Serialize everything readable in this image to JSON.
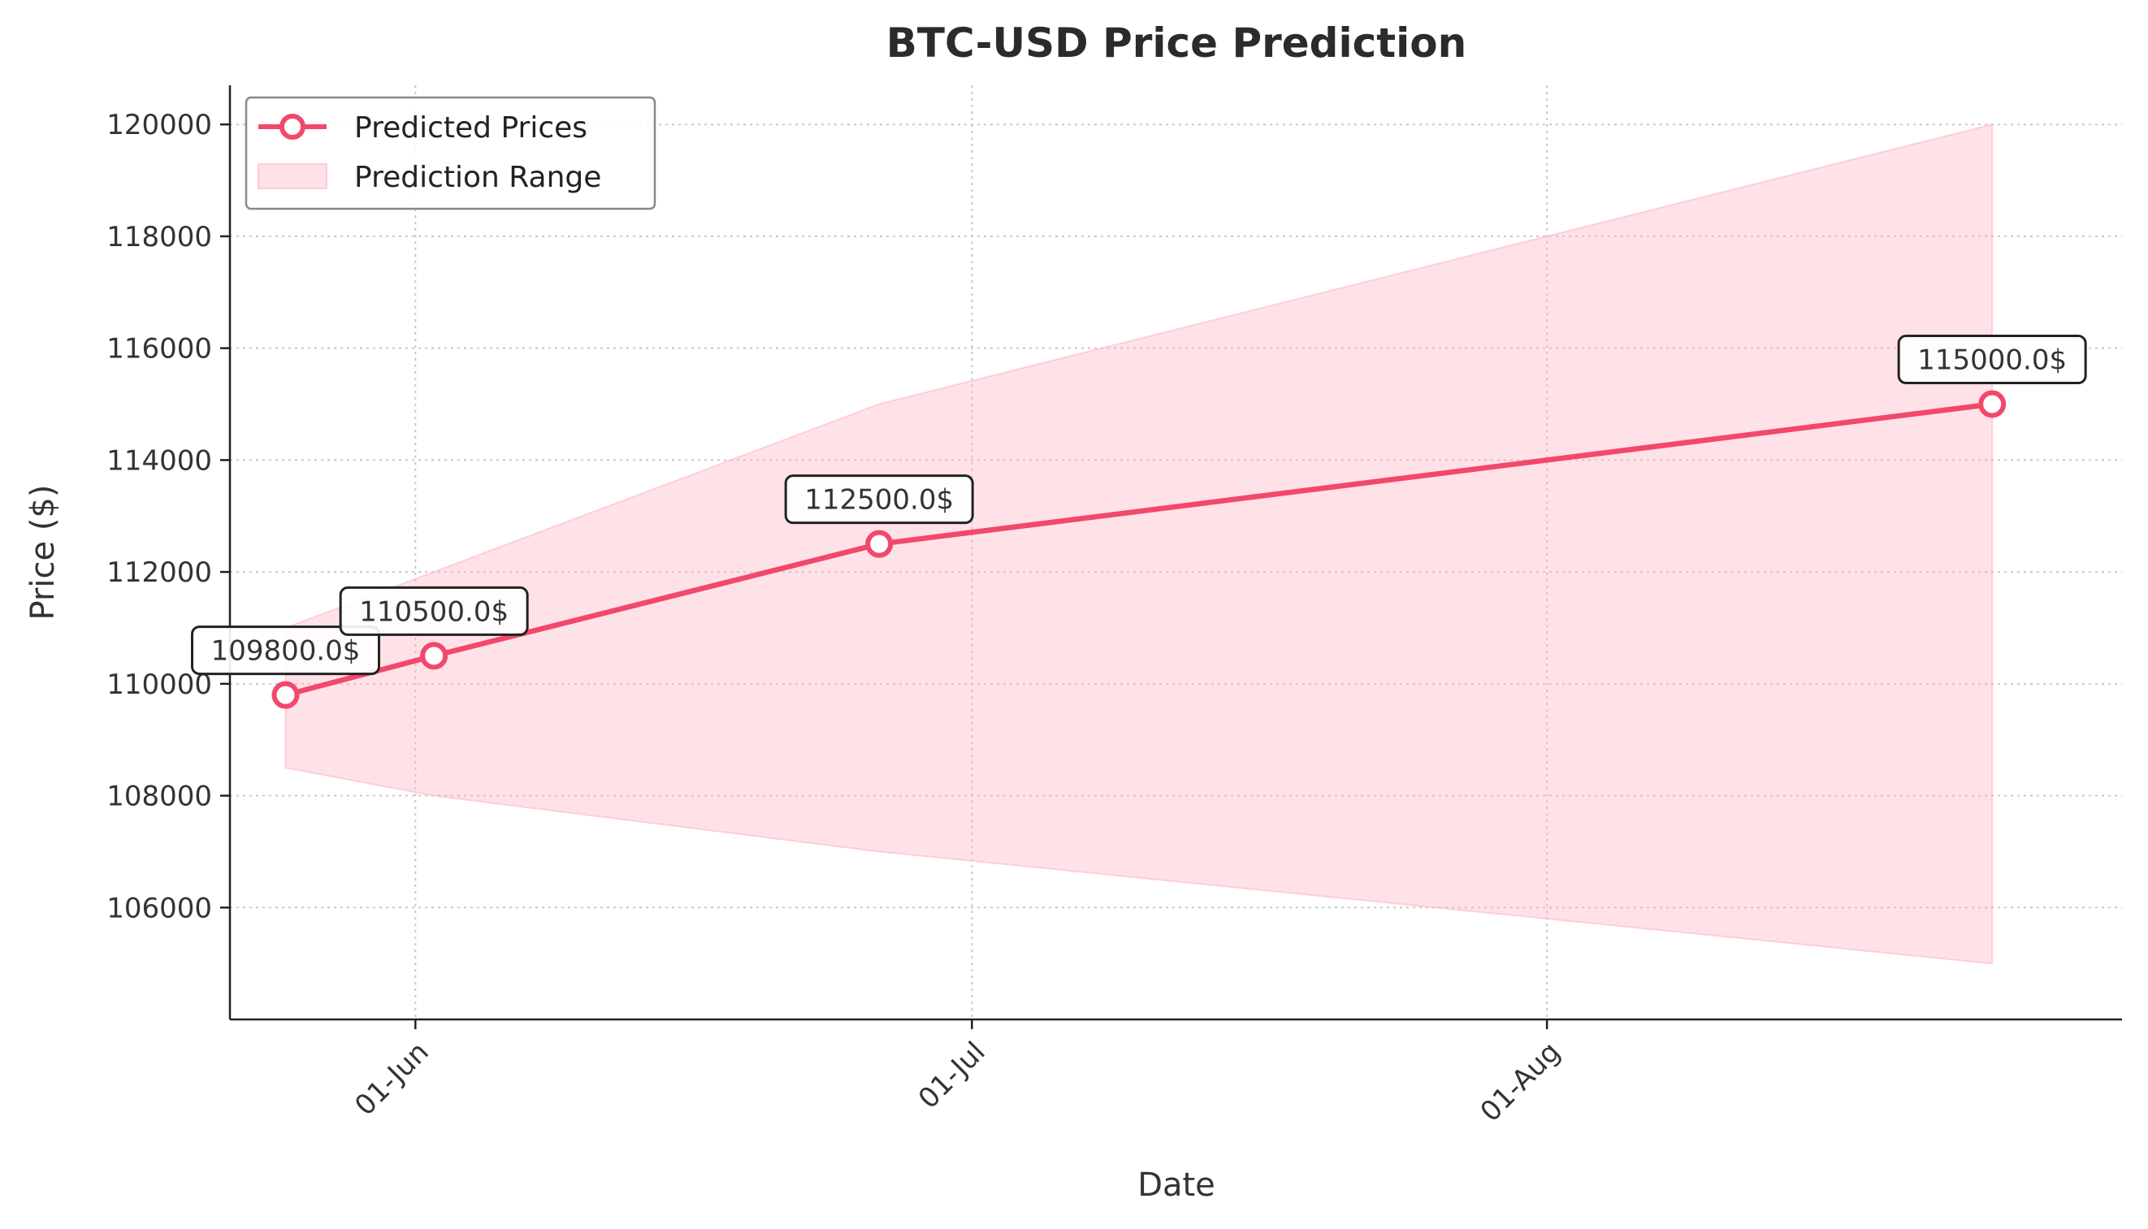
{
  "chart_data": {
    "type": "line",
    "title": "BTC-USD Price Prediction",
    "xlabel": "Date",
    "ylabel": "Price ($)",
    "x": [
      "2025-05-25",
      "2025-06-02",
      "2025-06-26",
      "2025-08-25"
    ],
    "series": [
      {
        "name": "Predicted Prices",
        "values": [
          109800,
          110500,
          112500,
          115000
        ],
        "annotations": [
          "109800.0$",
          "110500.0$",
          "112500.0$",
          "115000.0$"
        ],
        "color": "#f2486b"
      }
    ],
    "range": {
      "name": "Prediction Range",
      "lower": [
        108500,
        108000,
        107000,
        105000
      ],
      "upper": [
        111000,
        112000,
        115000,
        120000
      ],
      "color": "#ffb3c1"
    },
    "x_ticks": [
      {
        "date": "2025-06-01",
        "label": "01-Jun"
      },
      {
        "date": "2025-07-01",
        "label": "01-Jul"
      },
      {
        "date": "2025-08-01",
        "label": "01-Aug"
      }
    ],
    "y_ticks": [
      106000,
      108000,
      110000,
      112000,
      114000,
      116000,
      118000,
      120000
    ],
    "xlim": [
      "2025-05-22",
      "2025-09-01"
    ],
    "ylim": [
      104000,
      120700
    ],
    "grid": true,
    "legend_position": "top-left"
  }
}
